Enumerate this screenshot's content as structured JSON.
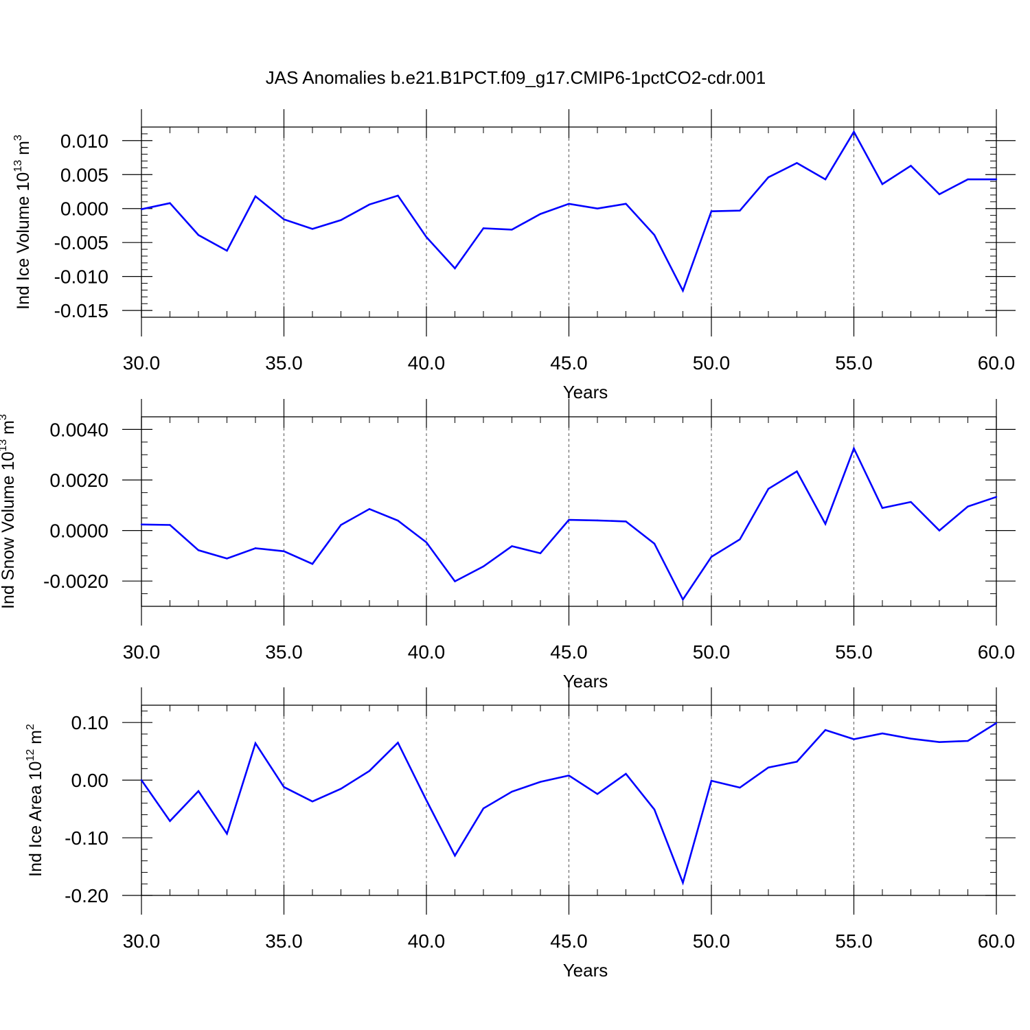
{
  "title": "JAS Anomalies b.e21.B1PCT.f09_g17.CMIP6-1pctCO2-cdr.001",
  "chart_data": [
    {
      "type": "line",
      "xlabel": "Years",
      "ylabel": {
        "prefix": "Ind Ice Volume 10",
        "exp": "13",
        "unit": " m",
        "unit_exp": "3"
      },
      "xlim": [
        30,
        60
      ],
      "ylim": [
        -0.016,
        0.012
      ],
      "x_ticks": [
        30,
        35,
        40,
        45,
        50,
        55,
        60
      ],
      "x_tick_labels": [
        "30.0",
        "35.0",
        "40.0",
        "45.0",
        "50.0",
        "55.0",
        "60.0"
      ],
      "y_ticks": [
        -0.015,
        -0.01,
        -0.005,
        0.0,
        0.005,
        0.01
      ],
      "y_tick_labels": [
        "-0.015",
        "-0.010",
        "-0.005",
        "0.000",
        "0.005",
        "0.010"
      ],
      "y_minor_step": 0.001,
      "grid": "vertical dashed at major x ticks",
      "color": "#0000ff",
      "x": [
        30,
        31,
        32,
        33,
        34,
        35,
        36,
        37,
        38,
        39,
        40,
        41,
        42,
        43,
        44,
        45,
        46,
        47,
        48,
        49,
        50,
        51,
        52,
        53,
        54,
        55,
        56,
        57,
        58,
        59,
        60
      ],
      "values": [
        -0.0001,
        0.0008,
        -0.0039,
        -0.0062,
        0.0018,
        -0.0016,
        -0.003,
        -0.0017,
        0.0006,
        0.0019,
        -0.0042,
        -0.0088,
        -0.0029,
        -0.0031,
        -0.0008,
        0.0007,
        0.0,
        0.0007,
        -0.0039,
        -0.0121,
        -0.0004,
        -0.0003,
        0.0046,
        0.0067,
        0.0043,
        0.0113,
        0.0036,
        0.0063,
        0.0021,
        0.0043,
        0.0043
      ]
    },
    {
      "type": "line",
      "xlabel": "Years",
      "ylabel": {
        "prefix": "Ind Snow Volume 10",
        "exp": "13",
        "unit": " m",
        "unit_exp": "3"
      },
      "xlim": [
        30,
        60
      ],
      "ylim": [
        -0.003,
        0.0045
      ],
      "x_ticks": [
        30,
        35,
        40,
        45,
        50,
        55,
        60
      ],
      "x_tick_labels": [
        "30.0",
        "35.0",
        "40.0",
        "45.0",
        "50.0",
        "55.0",
        "60.0"
      ],
      "y_ticks": [
        -0.002,
        0.0,
        0.002,
        0.004
      ],
      "y_tick_labels": [
        "-0.0020",
        "0.0000",
        "0.0020",
        "0.0040"
      ],
      "y_minor_step": 0.0005,
      "grid": "vertical dashed at major x ticks",
      "color": "#0000ff",
      "x": [
        30,
        31,
        32,
        33,
        34,
        35,
        36,
        37,
        38,
        39,
        40,
        41,
        42,
        43,
        44,
        45,
        46,
        47,
        48,
        49,
        50,
        51,
        52,
        53,
        54,
        55,
        56,
        57,
        58,
        59,
        60
      ],
      "values": [
        0.00024,
        0.00022,
        -0.00078,
        -0.00111,
        -0.0007,
        -0.00082,
        -0.00132,
        0.00022,
        0.00085,
        0.00039,
        -0.00047,
        -0.00201,
        -0.00142,
        -0.00062,
        -0.0009,
        0.00042,
        0.0004,
        0.00036,
        -0.00052,
        -0.00273,
        -0.00104,
        -0.00035,
        0.00165,
        0.00234,
        0.00026,
        0.00325,
        0.00089,
        0.00113,
        0.0,
        0.00095,
        0.00133
      ]
    },
    {
      "type": "line",
      "xlabel": "Years",
      "ylabel": {
        "prefix": "Ind Ice Area 10",
        "exp": "12",
        "unit": " m",
        "unit_exp": "2"
      },
      "xlim": [
        30,
        60
      ],
      "ylim": [
        -0.2,
        0.13
      ],
      "x_ticks": [
        30,
        35,
        40,
        45,
        50,
        55,
        60
      ],
      "x_tick_labels": [
        "30.0",
        "35.0",
        "40.0",
        "45.0",
        "50.0",
        "55.0",
        "60.0"
      ],
      "y_ticks": [
        -0.2,
        -0.1,
        0.0,
        0.1
      ],
      "y_tick_labels": [
        "-0.20",
        "-0.10",
        "0.00",
        "0.10"
      ],
      "y_minor_step": 0.02,
      "grid": "vertical dashed at major x ticks",
      "color": "#0000ff",
      "x": [
        30,
        31,
        32,
        33,
        34,
        35,
        36,
        37,
        38,
        39,
        40,
        41,
        42,
        43,
        44,
        45,
        46,
        47,
        48,
        49,
        50,
        51,
        52,
        53,
        54,
        55,
        56,
        57,
        58,
        59,
        60
      ],
      "values": [
        0.0,
        -0.071,
        -0.019,
        -0.093,
        0.064,
        -0.012,
        -0.037,
        -0.015,
        0.016,
        0.065,
        -0.035,
        -0.131,
        -0.049,
        -0.02,
        -0.003,
        0.008,
        -0.024,
        0.011,
        -0.051,
        -0.178,
        -0.001,
        -0.013,
        0.022,
        0.032,
        0.087,
        0.071,
        0.081,
        0.072,
        0.066,
        0.068,
        0.099
      ]
    }
  ]
}
